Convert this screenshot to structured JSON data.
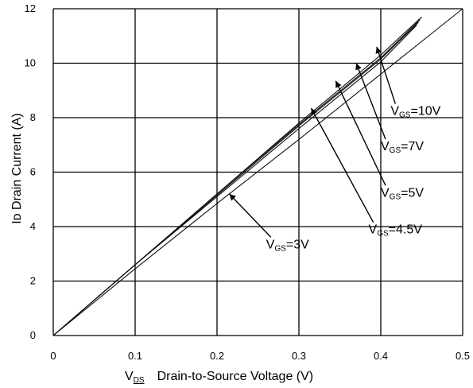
{
  "chart_data": {
    "type": "line",
    "title": "",
    "xlabel": "Drain-to-Source Voltage (V)",
    "xlabel_symbol": "V",
    "xlabel_symbol_sub": "DS",
    "ylabel": "Iᴅ Drain Current (A)",
    "xlim": [
      0,
      0.5
    ],
    "ylim": [
      0,
      12
    ],
    "grid": true,
    "x_ticks": [
      "0",
      "0.1",
      "0.2",
      "0.3",
      "0.4",
      "0.5"
    ],
    "y_ticks": [
      "0",
      "2",
      "4",
      "6",
      "8",
      "10",
      "12"
    ],
    "series": [
      {
        "x": [
          0,
          0.1,
          0.2,
          0.3,
          0.4,
          0.45
        ],
        "y": [
          0,
          2.6,
          5.2,
          7.8,
          10.3,
          11.7
        ],
        "ann": "=10V",
        "ann_symbol": "V",
        "ann_sub": "GS",
        "ax": 0.395,
        "ay": 10.6,
        "lx": 0.412,
        "ly": 8.1
      },
      {
        "x": [
          0,
          0.1,
          0.2,
          0.3,
          0.4,
          0.448
        ],
        "y": [
          0,
          2.6,
          5.2,
          7.75,
          10.2,
          11.6
        ],
        "ann": "=7V",
        "ann_symbol": "V",
        "ann_sub": "GS",
        "ax": 0.37,
        "ay": 10.0,
        "lx": 0.4,
        "ly": 6.8
      },
      {
        "x": [
          0,
          0.1,
          0.2,
          0.3,
          0.4,
          0.446
        ],
        "y": [
          0,
          2.6,
          5.15,
          7.7,
          10.15,
          11.5
        ],
        "ann": "=5V",
        "ann_symbol": "V",
        "ann_sub": "GS",
        "ax": 0.345,
        "ay": 9.35,
        "lx": 0.4,
        "ly": 5.1
      },
      {
        "x": [
          0,
          0.1,
          0.2,
          0.3,
          0.4,
          0.444
        ],
        "y": [
          0,
          2.6,
          5.1,
          7.6,
          10.05,
          11.4
        ],
        "ann": "=4.5V",
        "ann_symbol": "V",
        "ann_sub": "GS",
        "ax": 0.315,
        "ay": 8.35,
        "lx": 0.385,
        "ly": 3.75
      },
      {
        "x": [
          0,
          0.1,
          0.2,
          0.3,
          0.4,
          0.5
        ],
        "y": [
          0,
          2.45,
          4.85,
          7.2,
          9.6,
          12.0
        ],
        "ann": "=3V",
        "ann_symbol": "V",
        "ann_sub": "GS",
        "ax": 0.215,
        "ay": 5.2,
        "lx": 0.26,
        "ly": 3.2
      }
    ]
  }
}
